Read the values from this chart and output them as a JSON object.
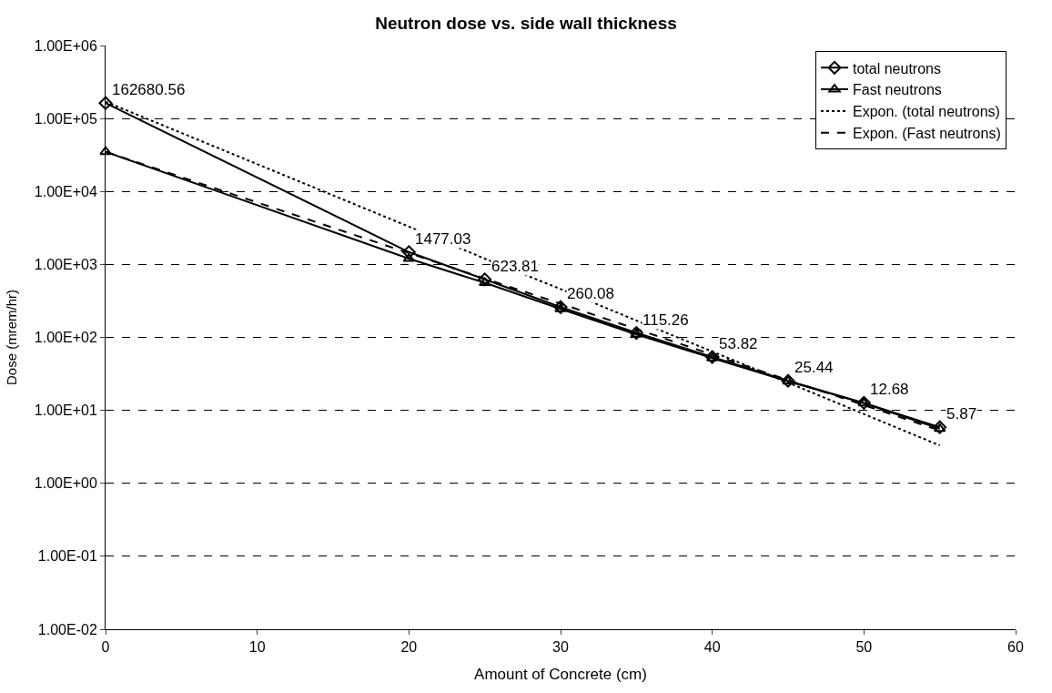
{
  "chart_data": {
    "type": "line",
    "title": "Neutron dose vs. side wall thickness",
    "xlabel": "Amount of Concrete (cm)",
    "ylabel": "Dose (mrem/hr)",
    "x": [
      0,
      20,
      25,
      30,
      35,
      40,
      45,
      50,
      55
    ],
    "series": [
      {
        "name": "total neutrons",
        "color": "#000000",
        "marker": "diamond",
        "line_style": "solid",
        "values": [
          162680.56,
          1477.03,
          623.81,
          260.08,
          115.26,
          53.82,
          25.44,
          12.68,
          5.87
        ],
        "value_labels": [
          "162680.56",
          "1477.03",
          "623.81",
          "260.08",
          "115.26",
          "53.82",
          "25.44",
          "12.68",
          "5.87"
        ]
      },
      {
        "name": "Fast neutrons",
        "color": "#000000",
        "marker": "triangle",
        "line_style": "solid",
        "values": [
          35000,
          1200,
          560,
          245,
          110,
          52,
          25,
          12.5,
          5.6
        ]
      },
      {
        "name": "Expon. (total neutrons)",
        "color": "#000000",
        "marker": "none",
        "line_style": "dotted",
        "values": [
          170000,
          3300,
          1200,
          460,
          170,
          64,
          24,
          8.9,
          3.3
        ]
      },
      {
        "name": "Expon. (Fast neutrons)",
        "color": "#000000",
        "marker": "none",
        "line_style": "dashed",
        "values": [
          35000,
          1430,
          640,
          290,
          130,
          58,
          26,
          11.8,
          5.3
        ]
      }
    ],
    "log": "y",
    "xlim": [
      0,
      60
    ],
    "xticks": [
      0,
      10,
      20,
      30,
      40,
      50,
      60
    ],
    "ylim": [
      0.01,
      1000000
    ],
    "yticks": [
      {
        "value": 0.01,
        "label": "1.00E-02"
      },
      {
        "value": 0.1,
        "label": "1.00E-01"
      },
      {
        "value": 1,
        "label": "1.00E+00"
      },
      {
        "value": 10,
        "label": "1.00E+01"
      },
      {
        "value": 100,
        "label": "1.00E+02"
      },
      {
        "value": 1000,
        "label": "1.00E+03"
      },
      {
        "value": 10000,
        "label": "1.00E+04"
      },
      {
        "value": 100000,
        "label": "1.00E+05"
      },
      {
        "value": 1000000,
        "label": "1.00E+06"
      }
    ],
    "grid": "y",
    "legend": "top right"
  }
}
